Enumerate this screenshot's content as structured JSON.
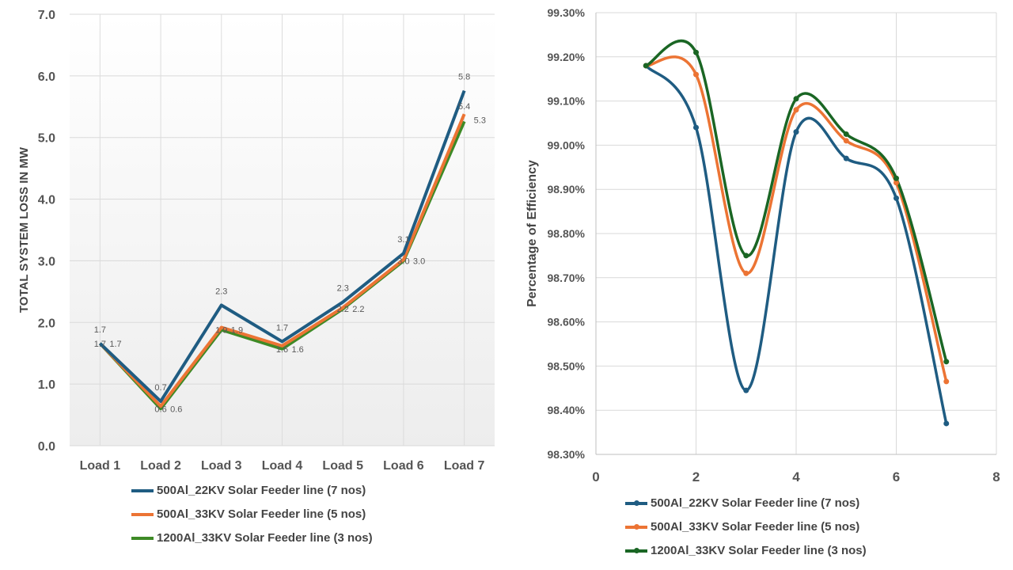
{
  "chart_data": [
    {
      "type": "line",
      "title": "",
      "xlabel": "",
      "ylabel": "TOTAL SYSTEM LOSS IN MW",
      "categories": [
        "Load 1",
        "Load 2",
        "Load 3",
        "Load 4",
        "Load 5",
        "Load 6",
        "Load 7"
      ],
      "ylim": [
        0,
        7
      ],
      "yticks": [
        "0.0",
        "1.0",
        "2.0",
        "3.0",
        "4.0",
        "5.0",
        "6.0",
        "7.0"
      ],
      "grid": true,
      "legend_position": "bottom",
      "series": [
        {
          "name": "500Al_22KV Solar Feeder line (7 nos)",
          "color": "#1f5c82",
          "values": [
            1.66,
            0.72,
            2.28,
            1.69,
            2.33,
            3.12,
            5.76
          ],
          "labels": [
            "1.7",
            "0.7",
            "2.3",
            "1.7",
            "2.3",
            "3.1",
            "5.8"
          ]
        },
        {
          "name": "500Al_33KV Solar Feeder line (5 nos)",
          "color": "#ec7434",
          "values": [
            1.66,
            0.64,
            1.92,
            1.62,
            2.24,
            3.02,
            5.38
          ],
          "labels": [
            "1.7",
            "0.6",
            "1.9",
            "1.6",
            "2.2",
            "3.0",
            "5.4"
          ]
        },
        {
          "name": "1200Al_33KV Solar Feeder line (3 nos)",
          "color": "#3e8a26",
          "values": [
            1.66,
            0.6,
            1.88,
            1.57,
            2.22,
            3.0,
            5.26
          ],
          "labels": [
            "1.7",
            "0.6",
            "1.9",
            "1.6",
            "2.2",
            "3.0",
            "5.3"
          ]
        }
      ]
    },
    {
      "type": "scatter",
      "title": "",
      "xlabel": "",
      "ylabel": "Percentage of Efficiency",
      "xlim": [
        0,
        8
      ],
      "xticks": [
        "0",
        "2",
        "4",
        "6",
        "8"
      ],
      "ylim": [
        98.3,
        99.3
      ],
      "yticks": [
        "98.30%",
        "98.40%",
        "98.50%",
        "98.60%",
        "98.70%",
        "98.80%",
        "98.90%",
        "99.00%",
        "99.10%",
        "99.20%",
        "99.30%"
      ],
      "grid": true,
      "smooth_lines": true,
      "legend_position": "bottom",
      "series": [
        {
          "name": "500Al_22KV Solar Feeder line (7 nos)",
          "color": "#1f5c82",
          "x": [
            1,
            2,
            3,
            4,
            5,
            6,
            7
          ],
          "y": [
            99.18,
            99.04,
            98.445,
            99.03,
            98.97,
            98.88,
            98.37
          ]
        },
        {
          "name": "500Al_33KV Solar Feeder line (5 nos)",
          "color": "#ec7434",
          "x": [
            1,
            2,
            3,
            4,
            5,
            6,
            7
          ],
          "y": [
            99.18,
            99.16,
            98.71,
            99.08,
            99.01,
            98.915,
            98.465
          ]
        },
        {
          "name": "1200Al_33KV Solar Feeder line (3 nos)",
          "color": "#1a6624",
          "x": [
            1,
            2,
            3,
            4,
            5,
            6,
            7
          ],
          "y": [
            99.18,
            99.21,
            98.75,
            99.105,
            99.025,
            98.925,
            98.51
          ]
        }
      ]
    }
  ]
}
